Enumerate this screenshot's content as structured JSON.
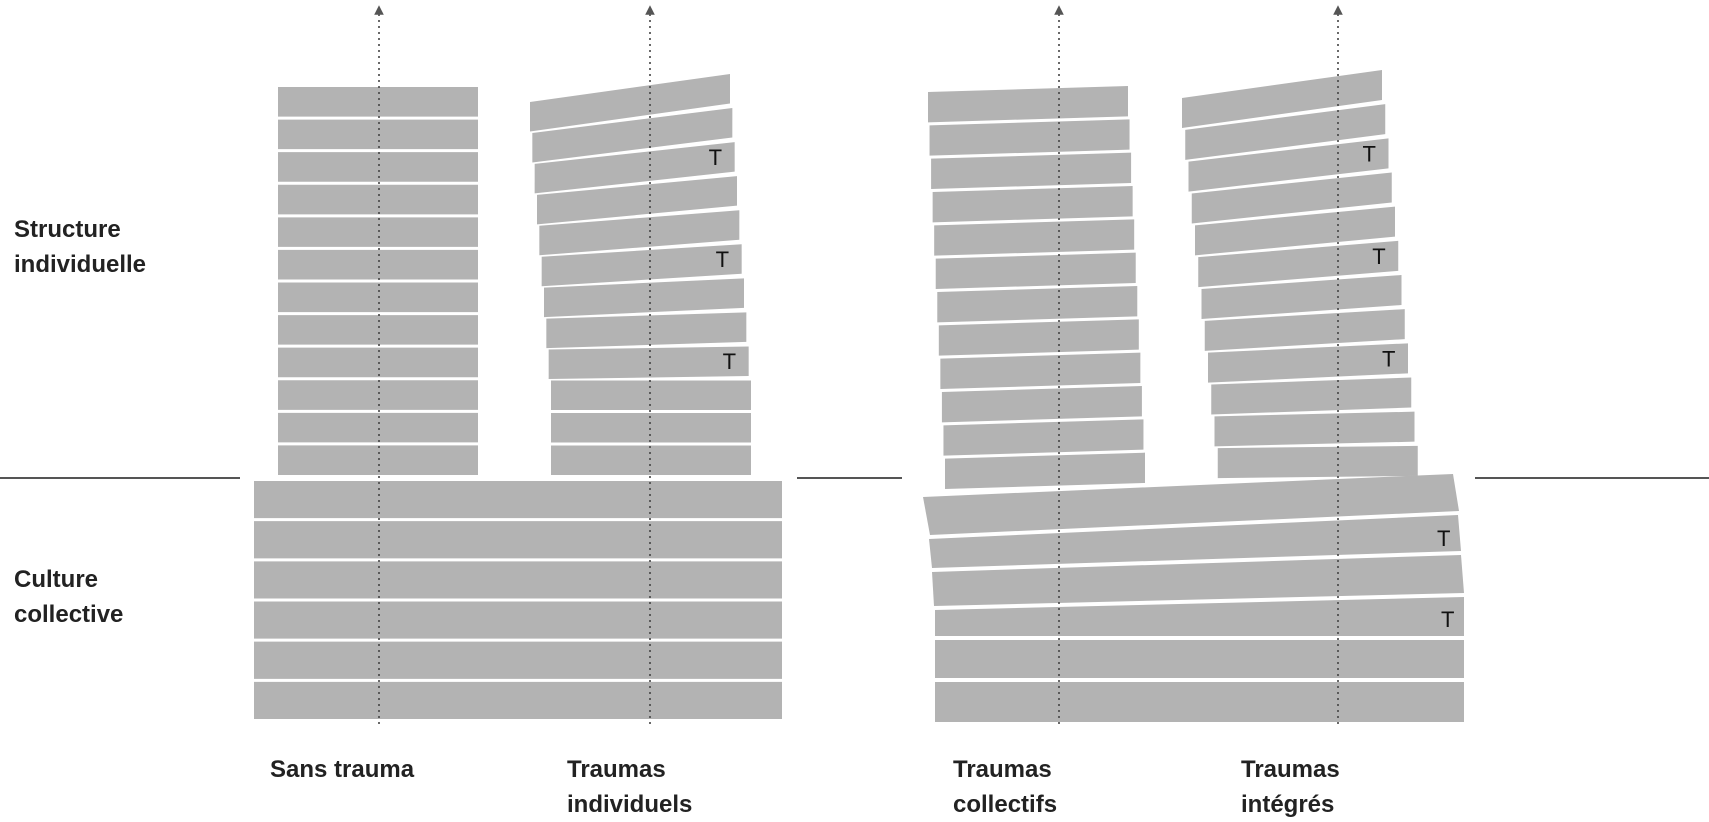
{
  "labels": {
    "structure": "Structure\nindividuelle",
    "culture": "Culture\ncollective"
  },
  "columns": [
    {
      "label": "Sans trauma"
    },
    {
      "label": "Traumas\nindividuels"
    },
    {
      "label": "Traumas\ncollectifs"
    },
    {
      "label": "Traumas\nintégrés"
    }
  ],
  "trauma_marker": "T",
  "colors": {
    "block": "#b3b3b3",
    "axis": "#444444",
    "baseline": "#555555",
    "text": "#222222"
  },
  "groups": [
    {
      "name": "sans-trauma",
      "block_count": 12,
      "trauma_positions": []
    },
    {
      "name": "traumas-individuels",
      "block_count": 12,
      "trauma_positions": [
        3,
        6,
        9
      ]
    },
    {
      "name": "traumas-collectifs",
      "block_count": 12,
      "trauma_positions": []
    },
    {
      "name": "traumas-integres",
      "block_count": 12,
      "trauma_positions": [
        3,
        6,
        9
      ]
    }
  ],
  "foundations": [
    {
      "name": "culture-sans-trauma",
      "block_count": 6,
      "trauma_positions": []
    },
    {
      "name": "culture-traumas-collectifs",
      "block_count": 6,
      "trauma_positions": [
        2,
        4
      ]
    }
  ]
}
